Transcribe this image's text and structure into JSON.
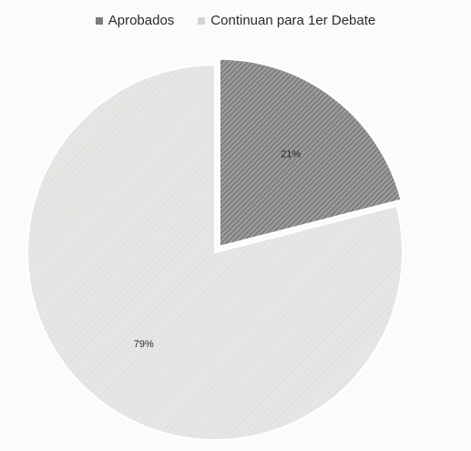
{
  "chart_data": {
    "type": "pie",
    "categories": [
      "Aprobados",
      "Continuan para 1er Debate"
    ],
    "values": [
      21,
      79
    ],
    "data_labels": [
      "21%",
      "79%"
    ],
    "colors": [
      "#8a8a8a",
      "#e4e4e2"
    ],
    "exploded": true,
    "legend_position": "top",
    "title": ""
  }
}
